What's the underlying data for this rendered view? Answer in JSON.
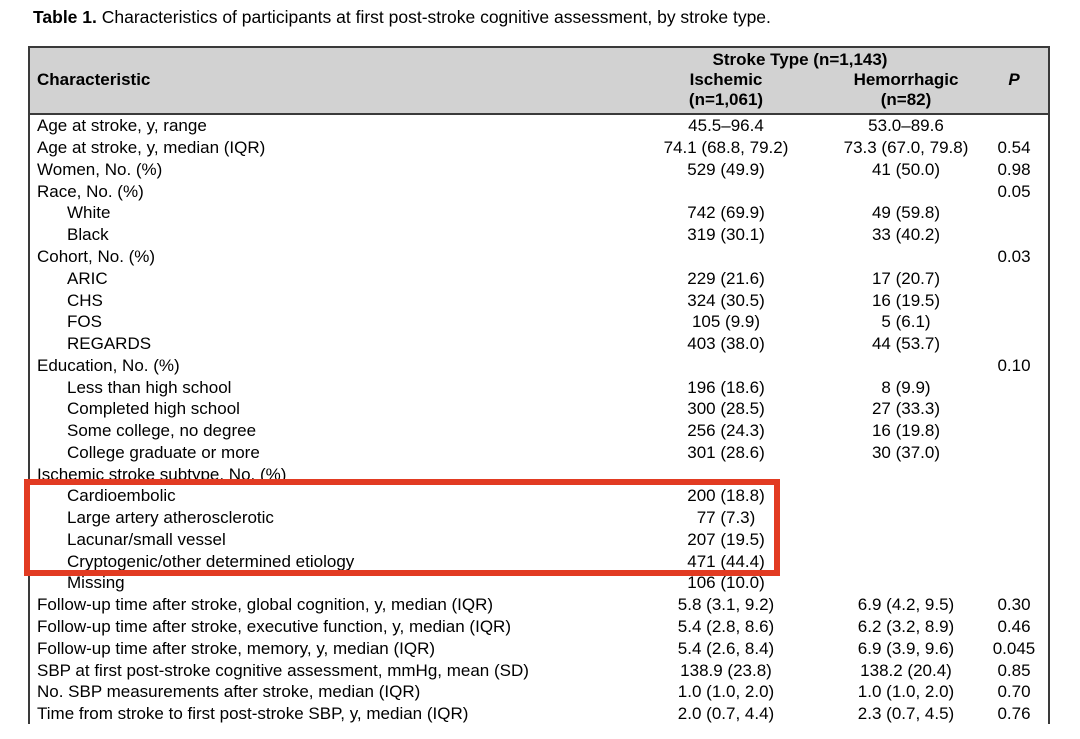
{
  "title": {
    "label": "Table 1.",
    "text": " Characteristics of participants at first post-stroke cognitive assessment, by stroke type."
  },
  "table": {
    "header": {
      "characteristic": "Characteristic",
      "group": "Stroke Type (n=1,143)",
      "col_ischemic": "Ischemic",
      "col_ischemic_n": "(n=1,061)",
      "col_hemorrhagic": "Hemorrhagic",
      "col_hemorrhagic_n": "(n=82)",
      "col_p": "P"
    },
    "rows": [
      {
        "label": "Age at stroke, y, range",
        "indent": 0,
        "ischemic": "45.5–96.4",
        "hemorrhagic": "53.0–89.6",
        "p": "",
        "highlighted": false
      },
      {
        "label": "Age at stroke, y, median (IQR)",
        "indent": 0,
        "ischemic": "74.1 (68.8, 79.2)",
        "hemorrhagic": "73.3 (67.0, 79.8)",
        "p": "0.54",
        "highlighted": false
      },
      {
        "label": "Women, No. (%)",
        "indent": 0,
        "ischemic": "529 (49.9)",
        "hemorrhagic": "41 (50.0)",
        "p": "0.98",
        "highlighted": false
      },
      {
        "label": "Race, No. (%)",
        "indent": 0,
        "ischemic": "",
        "hemorrhagic": "",
        "p": "0.05",
        "highlighted": false
      },
      {
        "label": "White",
        "indent": 1,
        "ischemic": "742 (69.9)",
        "hemorrhagic": "49 (59.8)",
        "p": "",
        "highlighted": false
      },
      {
        "label": "Black",
        "indent": 1,
        "ischemic": "319 (30.1)",
        "hemorrhagic": "33 (40.2)",
        "p": "",
        "highlighted": false
      },
      {
        "label": "Cohort, No. (%)",
        "indent": 0,
        "ischemic": "",
        "hemorrhagic": "",
        "p": "0.03",
        "highlighted": false
      },
      {
        "label": "ARIC",
        "indent": 1,
        "ischemic": "229 (21.6)",
        "hemorrhagic": "17 (20.7)",
        "p": "",
        "highlighted": false
      },
      {
        "label": "CHS",
        "indent": 1,
        "ischemic": "324 (30.5)",
        "hemorrhagic": "16 (19.5)",
        "p": "",
        "highlighted": false
      },
      {
        "label": "FOS",
        "indent": 1,
        "ischemic": "105 (9.9)",
        "hemorrhagic": "5 (6.1)",
        "p": "",
        "highlighted": false
      },
      {
        "label": "REGARDS",
        "indent": 1,
        "ischemic": "403 (38.0)",
        "hemorrhagic": "44 (53.7)",
        "p": "",
        "highlighted": false
      },
      {
        "label": "Education, No. (%)",
        "indent": 0,
        "ischemic": "",
        "hemorrhagic": "",
        "p": "0.10",
        "highlighted": false
      },
      {
        "label": "Less than high school",
        "indent": 1,
        "ischemic": "196 (18.6)",
        "hemorrhagic": "8 (9.9)",
        "p": "",
        "highlighted": false
      },
      {
        "label": "Completed high school",
        "indent": 1,
        "ischemic": "300 (28.5)",
        "hemorrhagic": "27 (33.3)",
        "p": "",
        "highlighted": false
      },
      {
        "label": "Some college, no degree",
        "indent": 1,
        "ischemic": "256 (24.3)",
        "hemorrhagic": "16 (19.8)",
        "p": "",
        "highlighted": false
      },
      {
        "label": "College graduate or more",
        "indent": 1,
        "ischemic": "301 (28.6)",
        "hemorrhagic": "30 (37.0)",
        "p": "",
        "highlighted": false
      },
      {
        "label": "Ischemic stroke subtype, No. (%)",
        "indent": 0,
        "ischemic": "",
        "hemorrhagic": "",
        "p": "",
        "highlighted": false
      },
      {
        "label": "Cardioembolic",
        "indent": 1,
        "ischemic": "200 (18.8)",
        "hemorrhagic": "",
        "p": "",
        "highlighted": true
      },
      {
        "label": "Large artery atherosclerotic",
        "indent": 1,
        "ischemic": "77 (7.3)",
        "hemorrhagic": "",
        "p": "",
        "highlighted": true
      },
      {
        "label": "Lacunar/small vessel",
        "indent": 1,
        "ischemic": "207 (19.5)",
        "hemorrhagic": "",
        "p": "",
        "highlighted": true
      },
      {
        "label": "Cryptogenic/other determined etiology",
        "indent": 1,
        "ischemic": "471 (44.4)",
        "hemorrhagic": "",
        "p": "",
        "highlighted": true
      },
      {
        "label": "Missing",
        "indent": 1,
        "ischemic": "106 (10.0)",
        "hemorrhagic": "",
        "p": "",
        "highlighted": false
      },
      {
        "label": "Follow-up time after stroke, global cognition, y, median (IQR)",
        "indent": 0,
        "ischemic": "5.8 (3.1, 9.2)",
        "hemorrhagic": "6.9 (4.2, 9.5)",
        "p": "0.30",
        "highlighted": false
      },
      {
        "label": "Follow-up time after stroke, executive function, y, median (IQR)",
        "indent": 0,
        "ischemic": "5.4 (2.8, 8.6)",
        "hemorrhagic": "6.2 (3.2, 8.9)",
        "p": "0.46",
        "highlighted": false
      },
      {
        "label": "Follow-up time after stroke, memory, y, median (IQR)",
        "indent": 0,
        "ischemic": "5.4 (2.6, 8.4)",
        "hemorrhagic": "6.9 (3.9, 9.6)",
        "p": "0.045",
        "highlighted": false
      },
      {
        "label": "SBP at first post-stroke cognitive assessment, mmHg, mean (SD)",
        "indent": 0,
        "ischemic": "138.9 (23.8)",
        "hemorrhagic": "138.2 (20.4)",
        "p": "0.85",
        "highlighted": false
      },
      {
        "label": "No. SBP measurements after stroke, median (IQR)",
        "indent": 0,
        "ischemic": "1.0 (1.0, 2.0)",
        "hemorrhagic": "1.0 (1.0, 2.0)",
        "p": "0.70",
        "highlighted": false
      },
      {
        "label": "Time from stroke to first post-stroke SBP, y, median (IQR)",
        "indent": 0,
        "ischemic": "2.0 (0.7, 4.4)",
        "hemorrhagic": "2.3 (0.7, 4.5)",
        "p": "0.76",
        "highlighted": false
      }
    ]
  },
  "colors": {
    "header_bg": "#d2d2d2",
    "table_border": "#3a3a3a",
    "highlight_red": "#e23b22"
  }
}
